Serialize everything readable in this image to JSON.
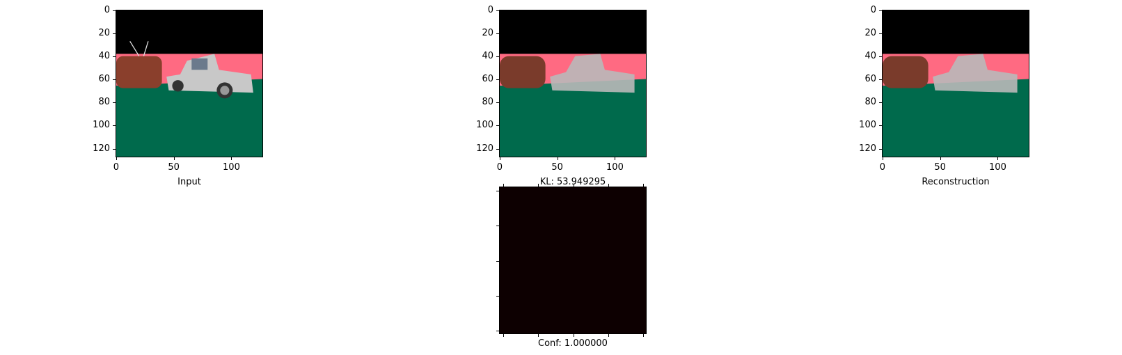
{
  "panels": [
    {
      "name": "input",
      "label": "Input"
    },
    {
      "name": "middle",
      "label": "KL: 53.949295"
    },
    {
      "name": "reconstruction",
      "label": "Reconstruction"
    },
    {
      "name": "confidence",
      "label": "Conf: 1.000000"
    }
  ],
  "axes": {
    "y_ticks": [
      "0",
      "20",
      "40",
      "60",
      "80",
      "100",
      "120"
    ],
    "x_ticks": [
      "0",
      "50",
      "100"
    ]
  },
  "colors": {
    "sky": "#000000",
    "wall": "#ff6a82",
    "ground": "#006a4c",
    "object": "#8a3f2c",
    "truck": "#c7c7c7",
    "conf_map": "#0d0001"
  }
}
